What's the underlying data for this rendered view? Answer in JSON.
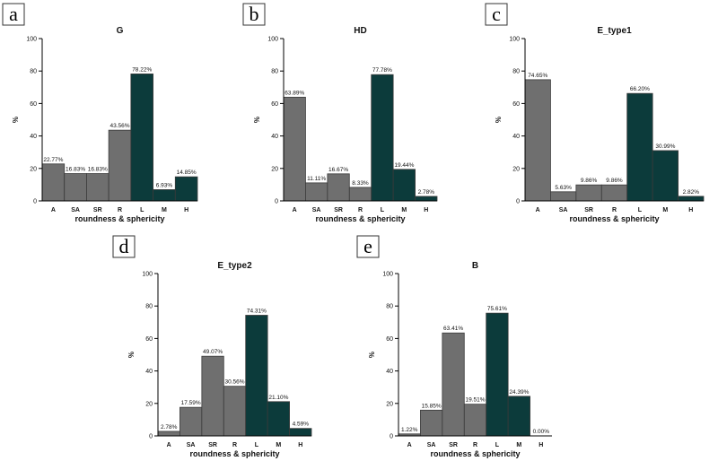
{
  "colors": {
    "shape_bar": "#6f6f6f",
    "type_bar": "#0c3b3b",
    "bar_stroke": "#3a3a3a",
    "axis": "#000000"
  },
  "shared": {
    "ylabel": "%",
    "xlabel": "roundness & sphericity",
    "yticks": [
      "0",
      "20",
      "40",
      "60",
      "80",
      "100"
    ]
  },
  "chart_data": [
    {
      "type": "bar",
      "panel": "a",
      "title": "G",
      "categories": [
        "A",
        "SA",
        "SR",
        "R",
        "L",
        "M",
        "H"
      ],
      "values": [
        22.77,
        16.83,
        16.83,
        43.56,
        78.22,
        6.93,
        14.85
      ],
      "labels": [
        "22.77%",
        "16.83%",
        "16.83%",
        "43.56%",
        "78.22%",
        "6.93%",
        "14.85%"
      ],
      "xlabel": "roundness & sphericity",
      "ylabel": "%",
      "ylim": [
        0,
        100
      ]
    },
    {
      "type": "bar",
      "panel": "b",
      "title": "HD",
      "categories": [
        "A",
        "SA",
        "SR",
        "R",
        "L",
        "M",
        "H"
      ],
      "values": [
        63.89,
        11.11,
        16.67,
        8.33,
        77.78,
        19.44,
        2.78
      ],
      "labels": [
        "63.89%",
        "11.11%",
        "16.67%",
        "8.33%",
        "77.78%",
        "19.44%",
        "2.78%"
      ],
      "xlabel": "roundness & sphericity",
      "ylabel": "%",
      "ylim": [
        0,
        100
      ]
    },
    {
      "type": "bar",
      "panel": "c",
      "title": "E_type1",
      "categories": [
        "A",
        "SA",
        "SR",
        "R",
        "L",
        "M",
        "H"
      ],
      "values": [
        74.65,
        5.63,
        9.86,
        9.86,
        66.2,
        30.99,
        2.82
      ],
      "labels": [
        "74.65%",
        "5.63%",
        "9.86%",
        "9.86%",
        "66.20%",
        "30.99%",
        "2.82%"
      ],
      "xlabel": "roundness & sphericity",
      "ylabel": "%",
      "ylim": [
        0,
        100
      ]
    },
    {
      "type": "bar",
      "panel": "d",
      "title": "E_type2",
      "categories": [
        "A",
        "SA",
        "SR",
        "R",
        "L",
        "M",
        "H"
      ],
      "values": [
        2.78,
        17.59,
        49.07,
        30.56,
        74.31,
        21.1,
        4.59
      ],
      "labels": [
        "2.78%",
        "17.59%",
        "49.07%",
        "30.56%",
        "74.31%",
        "21.10%",
        "4.59%"
      ],
      "xlabel": "roundness & sphericity",
      "ylabel": "%",
      "ylim": [
        0,
        100
      ]
    },
    {
      "type": "bar",
      "panel": "e",
      "title": "B",
      "categories": [
        "A",
        "SA",
        "SR",
        "R",
        "L",
        "M",
        "H"
      ],
      "values": [
        1.22,
        15.85,
        63.41,
        19.51,
        75.61,
        24.39,
        0.0
      ],
      "labels": [
        "1.22%",
        "15.85%",
        "63.41%",
        "19.51%",
        "75.61%",
        "24.39%",
        "0.00%"
      ],
      "xlabel": "roundness & sphericity",
      "ylabel": "%",
      "ylim": [
        0,
        100
      ]
    }
  ]
}
